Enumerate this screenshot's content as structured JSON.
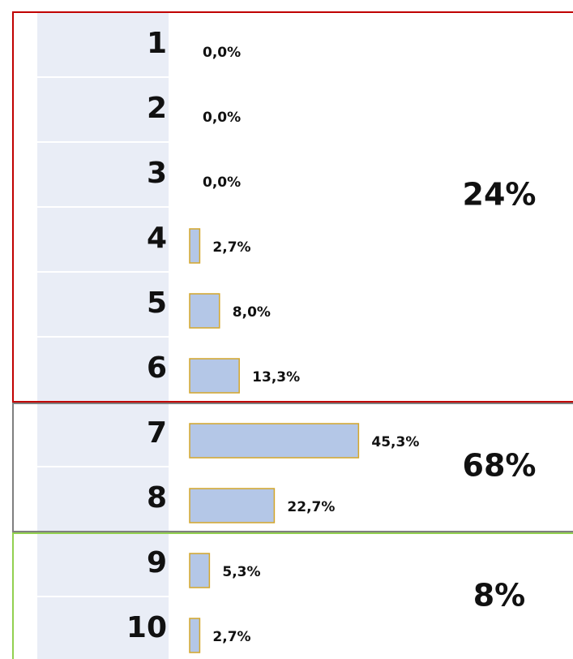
{
  "chart_data": {
    "type": "bar",
    "orientation": "horizontal",
    "categories": [
      "1",
      "2",
      "3",
      "4",
      "5",
      "6",
      "7",
      "8",
      "9",
      "10"
    ],
    "values": [
      0.0,
      0.0,
      0.0,
      2.7,
      8.0,
      13.3,
      45.3,
      22.7,
      5.3,
      2.7
    ],
    "value_labels": [
      "0,0%",
      "0,0%",
      "0,0%",
      "2,7%",
      "8,0%",
      "13,3%",
      "45,3%",
      "22,7%",
      "5,3%",
      "2,7%"
    ],
    "color": "#b4c7e7",
    "edge_color": "#d4a62a",
    "xlim": [
      0,
      100
    ],
    "groups": [
      {
        "value": 24,
        "label": "24%",
        "color": "#c00000",
        "rows": 6
      },
      {
        "value": 68,
        "label": "68%",
        "color": "#7f7f7f",
        "rows": 2
      },
      {
        "value": 8,
        "label": "8%",
        "color": "#92d050",
        "rows": 2
      }
    ]
  }
}
